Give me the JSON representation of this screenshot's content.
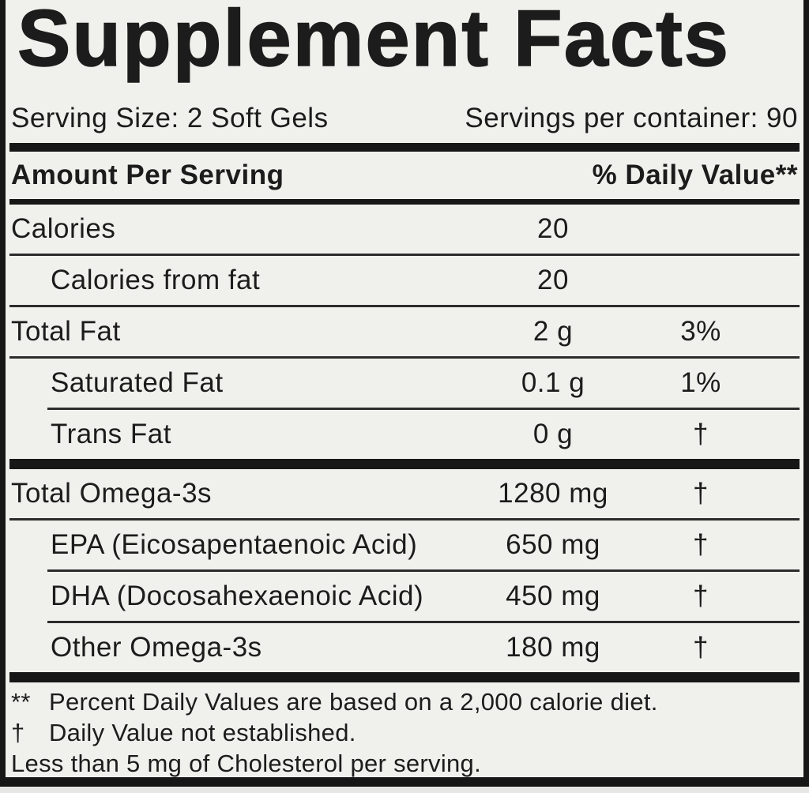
{
  "colors": {
    "label_bg": "#f0f1ec",
    "ink": "#1c1c1c",
    "rule": "#2c2c2c",
    "frame": "#171717",
    "page_bg": "#e7e7e5"
  },
  "title": "Supplement Facts",
  "serving": {
    "size": "Serving Size: 2 Soft Gels",
    "per_container": "Servings per container: 90"
  },
  "table": {
    "amount_header": "Amount Per Serving",
    "dv_header": "% Daily Value**",
    "fat_rows": [
      {
        "name": "Calories",
        "amount": "20",
        "dv": ""
      },
      {
        "name": "Calories from fat",
        "amount": "20",
        "dv": ""
      },
      {
        "name": "Total Fat",
        "amount": "2 g",
        "dv": "3%"
      },
      {
        "name": "Saturated Fat",
        "amount": "0.1 g",
        "dv": "1%"
      },
      {
        "name": "Trans Fat",
        "amount": "0 g",
        "dv": "†"
      }
    ],
    "omega_rows": [
      {
        "name": "Total Omega-3s",
        "amount": "1280 mg",
        "dv": "†"
      },
      {
        "name": "EPA (Eicosapentaenoic Acid)",
        "amount": "650 mg",
        "dv": "†"
      },
      {
        "name": "DHA (Docosahexaenoic Acid)",
        "amount": "450 mg",
        "dv": "†"
      },
      {
        "name": "Other Omega-3s",
        "amount": "180 mg",
        "dv": "†"
      }
    ]
  },
  "footnotes": [
    {
      "marker": "**",
      "text": "Percent Daily Values are based on a 2,000 calorie diet."
    },
    {
      "marker": "†",
      "text": "Daily Value not established."
    },
    {
      "marker": "",
      "text": "Less than 5 mg of Cholesterol per serving."
    }
  ]
}
